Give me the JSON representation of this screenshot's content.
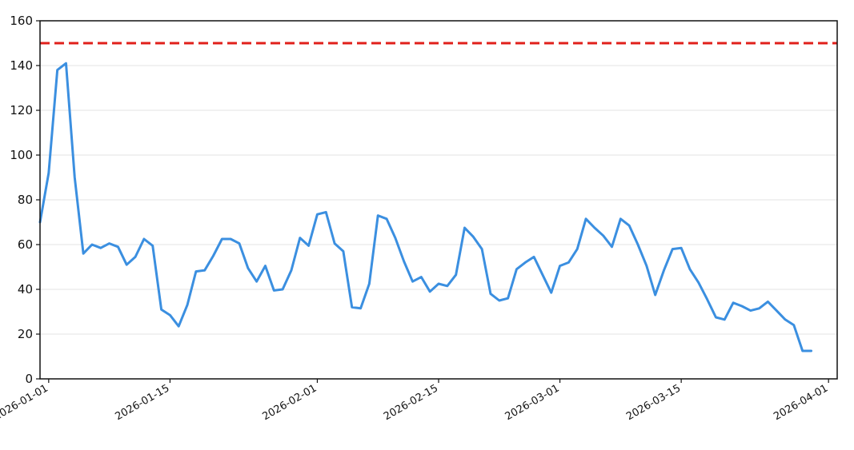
{
  "chart_data": {
    "type": "line",
    "title": "",
    "xlabel": "",
    "ylabel": "",
    "x_axis": {
      "type": "date",
      "range": [
        "2025-12-31",
        "2026-04-02"
      ],
      "ticks": [
        "2026-01-01",
        "2026-01-15",
        "2026-02-01",
        "2026-02-15",
        "2026-03-01",
        "2026-03-15",
        "2026-04-01"
      ]
    },
    "y_axis": {
      "range": [
        0,
        160
      ],
      "ticks": [
        0,
        20,
        40,
        60,
        80,
        100,
        120,
        140,
        160
      ]
    },
    "grid": {
      "horizontal": true,
      "vertical": false
    },
    "reference_line": {
      "y": 150,
      "style": "dashed",
      "color": "#e0201b"
    },
    "series": [
      {
        "color": "#3b8fe0",
        "points": [
          [
            "2025-12-31",
            70
          ],
          [
            "2026-01-01",
            92
          ],
          [
            "2026-01-02",
            138
          ],
          [
            "2026-01-03",
            141
          ],
          [
            "2026-01-04",
            90
          ],
          [
            "2026-01-05",
            56
          ],
          [
            "2026-01-06",
            60
          ],
          [
            "2026-01-07",
            58.5
          ],
          [
            "2026-01-08",
            60.5
          ],
          [
            "2026-01-09",
            59
          ],
          [
            "2026-01-10",
            51
          ],
          [
            "2026-01-11",
            54.5
          ],
          [
            "2026-01-12",
            62.5
          ],
          [
            "2026-01-13",
            59.5
          ],
          [
            "2026-01-14",
            31
          ],
          [
            "2026-01-15",
            28.5
          ],
          [
            "2026-01-16",
            23.5
          ],
          [
            "2026-01-17",
            33
          ],
          [
            "2026-01-18",
            48
          ],
          [
            "2026-01-19",
            48.5
          ],
          [
            "2026-01-20",
            55
          ],
          [
            "2026-01-21",
            62.5
          ],
          [
            "2026-01-22",
            62.5
          ],
          [
            "2026-01-23",
            60.5
          ],
          [
            "2026-01-24",
            49.5
          ],
          [
            "2026-01-25",
            43.5
          ],
          [
            "2026-01-26",
            50.5
          ],
          [
            "2026-01-27",
            39.5
          ],
          [
            "2026-01-28",
            40
          ],
          [
            "2026-01-29",
            48.5
          ],
          [
            "2026-01-30",
            63
          ],
          [
            "2026-01-31",
            59.5
          ],
          [
            "2026-02-01",
            73.5
          ],
          [
            "2026-02-02",
            74.5
          ],
          [
            "2026-02-03",
            60.5
          ],
          [
            "2026-02-04",
            57
          ],
          [
            "2026-02-05",
            32
          ],
          [
            "2026-02-06",
            31.5
          ],
          [
            "2026-02-07",
            42.5
          ],
          [
            "2026-02-08",
            73
          ],
          [
            "2026-02-09",
            71.5
          ],
          [
            "2026-02-10",
            63
          ],
          [
            "2026-02-11",
            52.5
          ],
          [
            "2026-02-12",
            43.5
          ],
          [
            "2026-02-13",
            45.5
          ],
          [
            "2026-02-14",
            39
          ],
          [
            "2026-02-15",
            42.5
          ],
          [
            "2026-02-16",
            41.5
          ],
          [
            "2026-02-17",
            46.5
          ],
          [
            "2026-02-18",
            67.5
          ],
          [
            "2026-02-19",
            63.5
          ],
          [
            "2026-02-20",
            58
          ],
          [
            "2026-02-21",
            38
          ],
          [
            "2026-02-22",
            35
          ],
          [
            "2026-02-23",
            36
          ],
          [
            "2026-02-24",
            49
          ],
          [
            "2026-02-25",
            52
          ],
          [
            "2026-02-26",
            54.5
          ],
          [
            "2026-02-27",
            46.5
          ],
          [
            "2026-02-28",
            38.5
          ],
          [
            "2026-03-01",
            50.5
          ],
          [
            "2026-03-02",
            52
          ],
          [
            "2026-03-03",
            58
          ],
          [
            "2026-03-04",
            71.5
          ],
          [
            "2026-03-05",
            67.5
          ],
          [
            "2026-03-06",
            64
          ],
          [
            "2026-03-07",
            59
          ],
          [
            "2026-03-08",
            71.5
          ],
          [
            "2026-03-09",
            68.5
          ],
          [
            "2026-03-10",
            60
          ],
          [
            "2026-03-11",
            50.5
          ],
          [
            "2026-03-12",
            37.5
          ],
          [
            "2026-03-13",
            48.5
          ],
          [
            "2026-03-14",
            58
          ],
          [
            "2026-03-15",
            58.5
          ],
          [
            "2026-03-16",
            49
          ],
          [
            "2026-03-17",
            43
          ],
          [
            "2026-03-18",
            35.5
          ],
          [
            "2026-03-19",
            27.5
          ],
          [
            "2026-03-20",
            26.5
          ],
          [
            "2026-03-21",
            34
          ],
          [
            "2026-03-22",
            32.5
          ],
          [
            "2026-03-23",
            30.5
          ],
          [
            "2026-03-24",
            31.5
          ],
          [
            "2026-03-25",
            34.5
          ],
          [
            "2026-03-26",
            30.5
          ],
          [
            "2026-03-27",
            26.5
          ],
          [
            "2026-03-28",
            24
          ],
          [
            "2026-03-29",
            12.5
          ],
          [
            "2026-03-30",
            12.5
          ]
        ]
      }
    ]
  }
}
